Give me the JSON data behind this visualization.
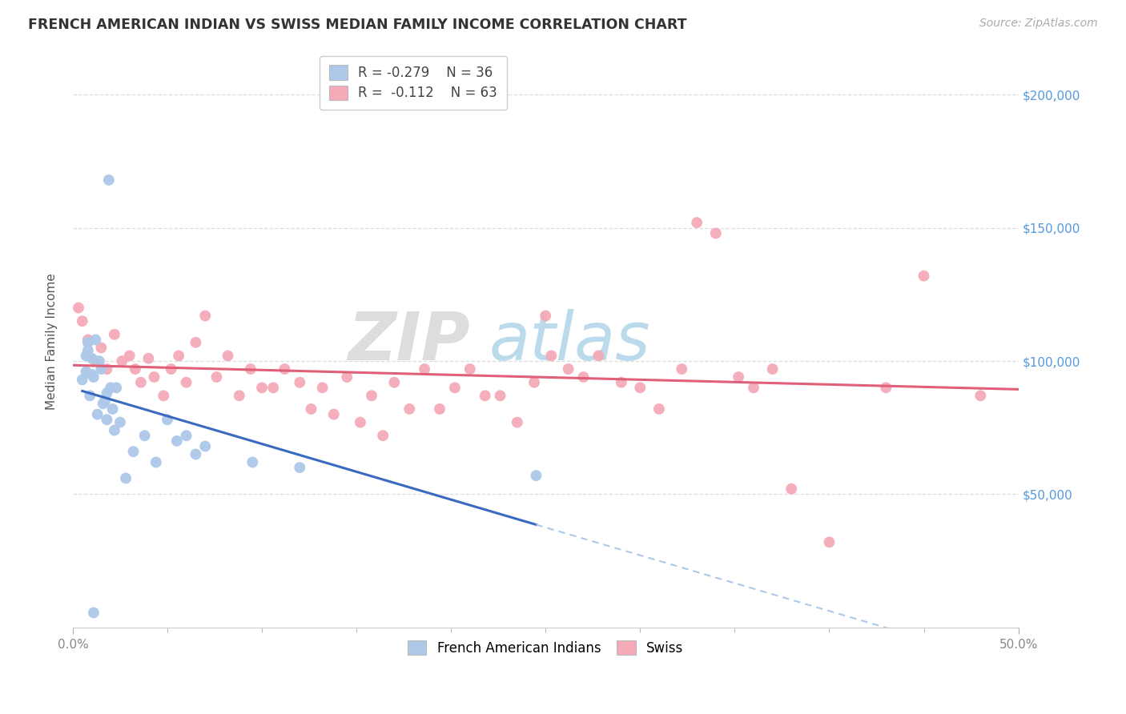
{
  "title": "FRENCH AMERICAN INDIAN VS SWISS MEDIAN FAMILY INCOME CORRELATION CHART",
  "source": "Source: ZipAtlas.com",
  "ylabel": "Median Family Income",
  "y_ticks": [
    50000,
    100000,
    150000,
    200000
  ],
  "y_tick_labels": [
    "$50,000",
    "$100,000",
    "$150,000",
    "$200,000"
  ],
  "xlim": [
    0.0,
    0.5
  ],
  "ylim": [
    0,
    215000
  ],
  "series1_name": "French American Indians",
  "series2_name": "Swiss",
  "series1_color": "#adc8e8",
  "series2_color": "#f5aab8",
  "series1_line_color": "#3a6abf",
  "series2_line_color": "#e0607a",
  "series1_dash_color": "#adc8e8",
  "legend1_label_r": "R = ",
  "legend1_r_val": "-0.279",
  "legend1_n": "N = 36",
  "legend2_label_r": "R =  ",
  "legend2_r_val": "-0.112",
  "legend2_n": "N = 63",
  "series1_x": [
    0.007,
    0.018,
    0.005,
    0.01,
    0.012,
    0.008,
    0.015,
    0.02,
    0.01,
    0.013,
    0.009,
    0.016,
    0.018,
    0.021,
    0.023,
    0.011,
    0.014,
    0.008,
    0.007,
    0.017,
    0.022,
    0.025,
    0.028,
    0.032,
    0.019,
    0.038,
    0.044,
    0.05,
    0.055,
    0.06,
    0.065,
    0.07,
    0.12,
    0.245,
    0.011,
    0.095
  ],
  "series1_y": [
    96000,
    88000,
    93000,
    101000,
    108000,
    104000,
    97000,
    90000,
    95000,
    80000,
    87000,
    84000,
    78000,
    82000,
    90000,
    94000,
    100000,
    107000,
    102000,
    85000,
    74000,
    77000,
    56000,
    66000,
    168000,
    72000,
    62000,
    78000,
    70000,
    72000,
    65000,
    68000,
    60000,
    57000,
    5500,
    62000
  ],
  "series2_x": [
    0.003,
    0.005,
    0.008,
    0.012,
    0.015,
    0.018,
    0.022,
    0.026,
    0.03,
    0.033,
    0.036,
    0.04,
    0.043,
    0.048,
    0.052,
    0.056,
    0.06,
    0.065,
    0.07,
    0.076,
    0.082,
    0.088,
    0.094,
    0.1,
    0.106,
    0.112,
    0.12,
    0.126,
    0.132,
    0.138,
    0.145,
    0.152,
    0.158,
    0.164,
    0.17,
    0.178,
    0.186,
    0.194,
    0.202,
    0.21,
    0.218,
    0.226,
    0.235,
    0.244,
    0.253,
    0.262,
    0.27,
    0.278,
    0.29,
    0.3,
    0.31,
    0.322,
    0.33,
    0.34,
    0.352,
    0.36,
    0.37,
    0.38,
    0.4,
    0.43,
    0.45,
    0.48,
    0.25
  ],
  "series2_y": [
    120000,
    115000,
    108000,
    100000,
    105000,
    97000,
    110000,
    100000,
    102000,
    97000,
    92000,
    101000,
    94000,
    87000,
    97000,
    102000,
    92000,
    107000,
    117000,
    94000,
    102000,
    87000,
    97000,
    90000,
    90000,
    97000,
    92000,
    82000,
    90000,
    80000,
    94000,
    77000,
    87000,
    72000,
    92000,
    82000,
    97000,
    82000,
    90000,
    97000,
    87000,
    87000,
    77000,
    92000,
    102000,
    97000,
    94000,
    102000,
    92000,
    90000,
    82000,
    97000,
    152000,
    148000,
    94000,
    90000,
    97000,
    52000,
    32000,
    90000,
    132000,
    87000,
    117000
  ],
  "watermark_zip_color": "#d8d8d8",
  "watermark_atlas_color": "#b0d4e8",
  "bg_color": "#ffffff",
  "grid_color": "#dddddd",
  "title_color": "#333333",
  "source_color": "#aaaaaa",
  "ylabel_color": "#555555",
  "ytick_color": "#5599dd",
  "xtick_color": "#888888",
  "title_fontsize": 12.5,
  "source_fontsize": 10,
  "ylabel_fontsize": 11,
  "legend_fontsize": 12,
  "ytick_fontsize": 11,
  "xtick_fontsize": 11
}
